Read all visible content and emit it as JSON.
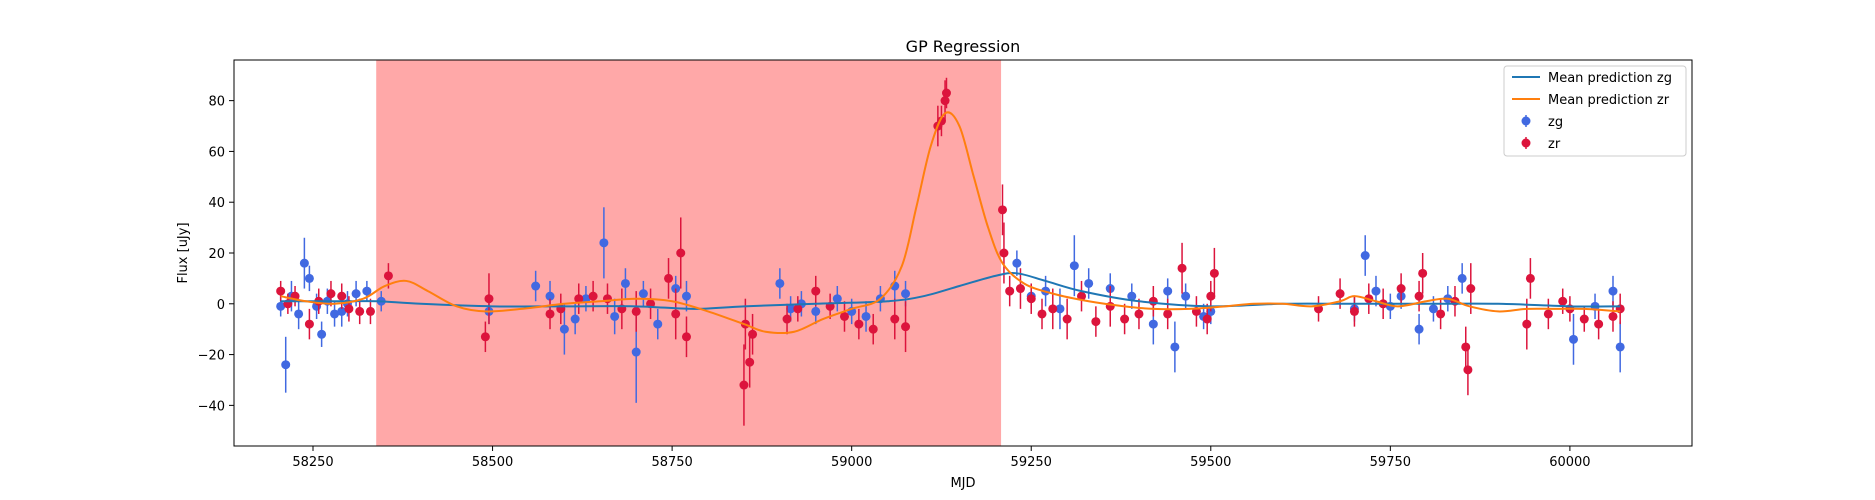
{
  "chart_data": {
    "type": "scatter",
    "title": "GP Regression",
    "xlabel": "MJD",
    "ylabel": "Flux [uJy]",
    "xlim": [
      58140,
      60170
    ],
    "ylim": [
      -56,
      96
    ],
    "xticks": [
      58250,
      58500,
      58750,
      59000,
      59250,
      59500,
      59750,
      60000
    ],
    "yticks": [
      -40,
      -20,
      0,
      20,
      40,
      60,
      80
    ],
    "grid": false,
    "legend_position": "top-right",
    "highlight_span": {
      "x0": 58338,
      "x1": 59208,
      "color": "#ffa8a8"
    },
    "legend": [
      {
        "label": "Mean prediction zg",
        "kind": "line",
        "color": "#1f77b4"
      },
      {
        "label": "Mean prediction zr",
        "kind": "line",
        "color": "#ff7f0e"
      },
      {
        "label": "zg",
        "kind": "marker",
        "color": "#4169e1"
      },
      {
        "label": "zr",
        "kind": "marker",
        "color": "#dc143c"
      }
    ],
    "series": [
      {
        "name": "Mean prediction zg",
        "type": "line",
        "color": "#1f77b4",
        "x": [
          58205,
          58250,
          58300,
          58340,
          58400,
          58500,
          58600,
          58700,
          58780,
          58850,
          58950,
          59050,
          59100,
          59150,
          59200,
          59230,
          59270,
          59320,
          59400,
          59500,
          59600,
          59700,
          59800,
          59900,
          60000,
          60070
        ],
        "y": [
          1,
          1,
          1,
          1,
          0,
          -1,
          -1,
          -1,
          -2,
          -1,
          0,
          1,
          3,
          7,
          11,
          12,
          9,
          5,
          1,
          -1,
          0,
          0,
          0,
          0,
          -1,
          -1
        ]
      },
      {
        "name": "Mean prediction zr",
        "type": "line",
        "color": "#ff7f0e",
        "x": [
          58205,
          58240,
          58280,
          58320,
          58350,
          58380,
          58410,
          58450,
          58490,
          58540,
          58600,
          58650,
          58700,
          58750,
          58800,
          58850,
          58880,
          58920,
          58960,
          59000,
          59040,
          59070,
          59090,
          59110,
          59130,
          59150,
          59170,
          59190,
          59210,
          59240,
          59280,
          59330,
          59380,
          59420,
          59470,
          59520,
          59560,
          59600,
          59640,
          59680,
          59700,
          59730,
          59760,
          59800,
          59830,
          59860,
          59900,
          59940,
          59980,
          60020,
          60070
        ],
        "y": [
          3,
          1,
          0,
          2,
          7,
          9,
          5,
          -1,
          -3,
          -2,
          0,
          1,
          2,
          1,
          -3,
          -8,
          -11,
          -11,
          -6,
          -2,
          2,
          15,
          38,
          62,
          75,
          70,
          50,
          30,
          16,
          8,
          4,
          1,
          -1,
          -2,
          -2,
          -1,
          0,
          0,
          -1,
          1,
          3,
          1,
          -1,
          1,
          2,
          -1,
          -3,
          -2,
          -2,
          -2,
          -3
        ]
      },
      {
        "name": "zg",
        "type": "scatter",
        "color": "#4169e1",
        "points": [
          [
            58205,
            -1,
            4
          ],
          [
            58212,
            -24,
            11
          ],
          [
            58220,
            3,
            6
          ],
          [
            58230,
            -4,
            6
          ],
          [
            58238,
            16,
            10
          ],
          [
            58245,
            10,
            5
          ],
          [
            58255,
            -1,
            5
          ],
          [
            58262,
            -12,
            5
          ],
          [
            58270,
            1,
            5
          ],
          [
            58280,
            -4,
            5
          ],
          [
            58290,
            -3,
            6
          ],
          [
            58298,
            0,
            5
          ],
          [
            58310,
            4,
            5
          ],
          [
            58325,
            5,
            4
          ],
          [
            58345,
            1,
            4
          ],
          [
            58495,
            -3,
            5
          ],
          [
            58560,
            7,
            6
          ],
          [
            58580,
            3,
            6
          ],
          [
            58600,
            -10,
            10
          ],
          [
            58615,
            -6,
            6
          ],
          [
            58630,
            2,
            5
          ],
          [
            58655,
            24,
            14
          ],
          [
            58670,
            -5,
            7
          ],
          [
            58685,
            8,
            6
          ],
          [
            58700,
            -19,
            20
          ],
          [
            58710,
            4,
            5
          ],
          [
            58730,
            -8,
            6
          ],
          [
            58755,
            6,
            5
          ],
          [
            58770,
            3,
            6
          ],
          [
            58900,
            8,
            6
          ],
          [
            58915,
            -2,
            5
          ],
          [
            58930,
            0,
            5
          ],
          [
            58950,
            -3,
            5
          ],
          [
            58980,
            2,
            5
          ],
          [
            59000,
            -3,
            5
          ],
          [
            59020,
            -5,
            6
          ],
          [
            59040,
            2,
            5
          ],
          [
            59060,
            7,
            6
          ],
          [
            59075,
            4,
            5
          ],
          [
            59230,
            16,
            5
          ],
          [
            59250,
            3,
            5
          ],
          [
            59270,
            5,
            6
          ],
          [
            59290,
            -2,
            8
          ],
          [
            59310,
            15,
            12
          ],
          [
            59330,
            8,
            6
          ],
          [
            59360,
            6,
            6
          ],
          [
            59390,
            3,
            5
          ],
          [
            59420,
            -8,
            8
          ],
          [
            59440,
            5,
            5
          ],
          [
            59450,
            -17,
            10
          ],
          [
            59465,
            3,
            5
          ],
          [
            59490,
            -5,
            5
          ],
          [
            59500,
            -3,
            5
          ],
          [
            59700,
            -2,
            5
          ],
          [
            59715,
            19,
            8
          ],
          [
            59730,
            5,
            6
          ],
          [
            59750,
            -1,
            5
          ],
          [
            59765,
            3,
            5
          ],
          [
            59790,
            -10,
            6
          ],
          [
            59810,
            -2,
            5
          ],
          [
            59830,
            2,
            5
          ],
          [
            59850,
            10,
            6
          ],
          [
            60005,
            -14,
            10
          ],
          [
            60035,
            -1,
            5
          ],
          [
            60060,
            5,
            6
          ],
          [
            60070,
            -17,
            10
          ]
        ]
      },
      {
        "name": "zr",
        "type": "scatter",
        "color": "#dc143c",
        "points": [
          [
            58205,
            5,
            4
          ],
          [
            58215,
            0,
            4
          ],
          [
            58225,
            3,
            4
          ],
          [
            58245,
            -8,
            6
          ],
          [
            58258,
            1,
            5
          ],
          [
            58275,
            4,
            5
          ],
          [
            58290,
            3,
            5
          ],
          [
            58300,
            -2,
            5
          ],
          [
            58315,
            -3,
            5
          ],
          [
            58330,
            -3,
            5
          ],
          [
            58355,
            11,
            5
          ],
          [
            58490,
            -13,
            6
          ],
          [
            58495,
            2,
            10
          ],
          [
            58580,
            -4,
            6
          ],
          [
            58595,
            -2,
            6
          ],
          [
            58620,
            2,
            6
          ],
          [
            58640,
            3,
            6
          ],
          [
            58660,
            2,
            6
          ],
          [
            58680,
            -2,
            8
          ],
          [
            58700,
            -3,
            8
          ],
          [
            58720,
            0,
            6
          ],
          [
            58745,
            10,
            8
          ],
          [
            58755,
            -4,
            10
          ],
          [
            58762,
            20,
            14
          ],
          [
            58770,
            -13,
            8
          ],
          [
            58850,
            -32,
            16
          ],
          [
            58852,
            -8,
            10
          ],
          [
            58858,
            -23,
            10
          ],
          [
            58862,
            -12,
            8
          ],
          [
            58910,
            -6,
            6
          ],
          [
            58925,
            -2,
            5
          ],
          [
            58950,
            5,
            6
          ],
          [
            58970,
            -1,
            5
          ],
          [
            58990,
            -5,
            6
          ],
          [
            59010,
            -8,
            6
          ],
          [
            59030,
            -10,
            6
          ],
          [
            59060,
            -6,
            8
          ],
          [
            59075,
            -9,
            10
          ],
          [
            59120,
            70,
            8
          ],
          [
            59125,
            72,
            6
          ],
          [
            59130,
            80,
            8
          ],
          [
            59132,
            83,
            6
          ],
          [
            59210,
            37,
            10
          ],
          [
            59212,
            20,
            12
          ],
          [
            59220,
            5,
            6
          ],
          [
            59235,
            6,
            8
          ],
          [
            59250,
            2,
            6
          ],
          [
            59265,
            -4,
            6
          ],
          [
            59280,
            -2,
            8
          ],
          [
            59300,
            -6,
            8
          ],
          [
            59320,
            3,
            6
          ],
          [
            59340,
            -7,
            6
          ],
          [
            59360,
            -1,
            8
          ],
          [
            59380,
            -6,
            6
          ],
          [
            59400,
            -4,
            6
          ],
          [
            59420,
            1,
            6
          ],
          [
            59440,
            -4,
            6
          ],
          [
            59460,
            14,
            10
          ],
          [
            59480,
            -3,
            6
          ],
          [
            59495,
            -6,
            6
          ],
          [
            59500,
            3,
            6
          ],
          [
            59505,
            12,
            10
          ],
          [
            59650,
            -2,
            5
          ],
          [
            59680,
            4,
            6
          ],
          [
            59700,
            -3,
            6
          ],
          [
            59720,
            2,
            6
          ],
          [
            59740,
            0,
            6
          ],
          [
            59765,
            6,
            6
          ],
          [
            59790,
            3,
            6
          ],
          [
            59795,
            12,
            8
          ],
          [
            59820,
            -4,
            6
          ],
          [
            59840,
            1,
            6
          ],
          [
            59855,
            -17,
            8
          ],
          [
            59858,
            -26,
            10
          ],
          [
            59862,
            6,
            10
          ],
          [
            59940,
            -8,
            10
          ],
          [
            59945,
            10,
            8
          ],
          [
            59970,
            -4,
            6
          ],
          [
            59990,
            1,
            5
          ],
          [
            60000,
            -2,
            5
          ],
          [
            60020,
            -6,
            5
          ],
          [
            60040,
            -8,
            6
          ],
          [
            60060,
            -5,
            6
          ],
          [
            60070,
            -2,
            6
          ]
        ]
      }
    ]
  }
}
